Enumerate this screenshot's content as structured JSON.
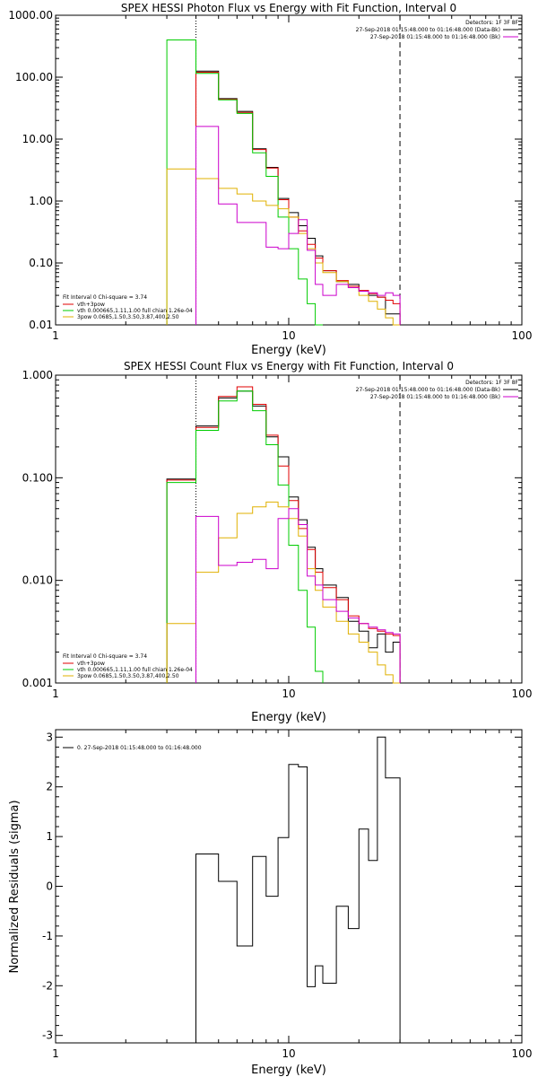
{
  "chart_data": [
    {
      "id": "photon",
      "type": "line",
      "title": "SPEX HESSI Photon Flux vs Energy with Fit Function, Interval 0",
      "xlabel": "Energy (keV)",
      "ylabel": "",
      "xscale": "log",
      "yscale": "log",
      "xlim": [
        1,
        100
      ],
      "ylim": [
        0.01,
        1000
      ],
      "x_ticks": [
        "1",
        "10",
        "100"
      ],
      "y_ticks": [
        "0.01",
        "0.10",
        "1.00",
        "10.00",
        "100.00",
        "1000.00"
      ],
      "vlines": [
        {
          "x": 4.0,
          "style": "dotted"
        },
        {
          "x": 30.0,
          "style": "dashed"
        }
      ],
      "legend_top": {
        "position": "top-right",
        "header": "Detectors: 1F 3F 8F",
        "entries": [
          {
            "text": "27-Sep-2018 01:15:48.000 to 01:16:48.000 (Data-Bk)",
            "color": "#000000"
          },
          {
            "text": "27-Sep-2018 01:15:48.000 to 01:16:48.000 (Bk)",
            "color": "#cc00cc"
          }
        ]
      },
      "legend_fit": {
        "position": "bottom-left",
        "header": "Fit Interval 0   Chi-square = 3.74",
        "entries": [
          {
            "text": "vth+3pow",
            "color": "#e00000"
          },
          {
            "text": "vth 0.000665,1.11,1.00   full chian 1.26e-04",
            "color": "#00cc00"
          },
          {
            "text": "3pow 0.0685,1.50,3.50,3.87,400,2.50",
            "color": "#e0b000"
          }
        ]
      },
      "series": [
        {
          "color": "#000000",
          "edges": [
            4,
            5,
            6,
            7,
            8,
            9,
            10,
            11,
            12,
            13,
            14,
            16,
            18,
            20,
            22,
            24,
            26,
            28,
            30
          ],
          "values": [
            125,
            45,
            28,
            7.0,
            3.5,
            1.1,
            0.65,
            0.4,
            0.25,
            0.13,
            0.075,
            0.05,
            0.045,
            0.035,
            0.03,
            0.028,
            0.015,
            0.015
          ]
        },
        {
          "color": "#e00000",
          "edges": [
            4,
            5,
            6,
            7,
            8,
            9,
            10,
            11,
            12,
            13,
            14,
            16,
            18,
            20,
            22,
            24,
            26,
            28,
            30
          ],
          "values": [
            120,
            44,
            27,
            6.8,
            3.4,
            1.05,
            0.55,
            0.33,
            0.2,
            0.12,
            0.075,
            0.052,
            0.042,
            0.036,
            0.032,
            0.028,
            0.025,
            0.022
          ]
        },
        {
          "color": "#00cc00",
          "edges": [
            3,
            4,
            5,
            6,
            7,
            8,
            9,
            10,
            11,
            12,
            13,
            14
          ],
          "values": [
            400,
            115,
            43,
            26,
            6.0,
            2.5,
            0.55,
            0.17,
            0.055,
            0.022,
            0.01
          ]
        },
        {
          "color": "#e0b000",
          "edges": [
            3,
            4,
            5,
            6,
            7,
            8,
            9,
            10,
            11,
            12,
            13,
            14,
            16,
            18,
            20,
            22,
            24,
            26,
            28,
            30
          ],
          "values": [
            3.3,
            2.3,
            1.6,
            1.3,
            1.0,
            0.85,
            0.75,
            0.55,
            0.3,
            0.17,
            0.1,
            0.07,
            0.05,
            0.04,
            0.03,
            0.024,
            0.018,
            0.013,
            0.01
          ]
        },
        {
          "color": "#cc00cc",
          "edges": [
            4,
            5,
            6,
            7,
            8,
            9,
            10,
            11,
            12,
            13,
            14,
            16,
            18,
            20,
            22,
            24,
            26,
            28,
            30
          ],
          "values": [
            16,
            0.9,
            0.45,
            0.45,
            0.18,
            0.17,
            0.3,
            0.5,
            0.16,
            0.045,
            0.03,
            0.045,
            0.04,
            0.035,
            0.033,
            0.03,
            0.033,
            0.03
          ]
        }
      ]
    },
    {
      "id": "count",
      "type": "line",
      "title": "SPEX HESSI Count Flux vs Energy with Fit Function, Interval 0",
      "xlabel": "Energy (keV)",
      "ylabel": "",
      "xscale": "log",
      "yscale": "log",
      "xlim": [
        1,
        100
      ],
      "ylim": [
        0.001,
        1.0
      ],
      "x_ticks": [
        "1",
        "10",
        "100"
      ],
      "y_ticks": [
        "0.001",
        "0.010",
        "0.100",
        "1.000"
      ],
      "vlines": [
        {
          "x": 4.0,
          "style": "dotted"
        },
        {
          "x": 30.0,
          "style": "dashed"
        }
      ],
      "legend_top": {
        "position": "top-right",
        "header": "Detectors: 1F 3F 8F",
        "entries": [
          {
            "text": "27-Sep-2018 01:15:48.000 to 01:16:48.000 (Data-Bk)",
            "color": "#000000"
          },
          {
            "text": "27-Sep-2018 01:15:48.000 to 01:16:48.000 (Bk)",
            "color": "#cc00cc"
          }
        ]
      },
      "legend_fit": {
        "position": "bottom-left",
        "header": "Fit Interval 0   Chi-square = 3.74",
        "entries": [
          {
            "text": "vth+3pow",
            "color": "#e00000"
          },
          {
            "text": "vth 0.000665,1.11,1.00   full chian 1.26e-04",
            "color": "#00cc00"
          },
          {
            "text": "3pow 0.0685,1.50,3.50,3.87,400,2.50",
            "color": "#e0b000"
          }
        ]
      },
      "series": [
        {
          "color": "#000000",
          "edges": [
            3,
            4,
            5,
            6,
            7,
            8,
            9,
            10,
            11,
            12,
            13,
            14,
            16,
            18,
            20,
            22,
            24,
            26,
            28,
            30
          ],
          "values": [
            0.097,
            0.32,
            0.6,
            0.7,
            0.5,
            0.25,
            0.16,
            0.065,
            0.039,
            0.021,
            0.013,
            0.009,
            0.0068,
            0.004,
            0.0032,
            0.0022,
            0.003,
            0.002,
            0.0025
          ]
        },
        {
          "color": "#e00000",
          "edges": [
            3,
            4,
            5,
            6,
            7,
            8,
            9,
            10,
            11,
            12,
            13,
            14,
            16,
            18,
            20,
            22,
            24,
            26,
            28,
            30
          ],
          "values": [
            0.095,
            0.31,
            0.62,
            0.77,
            0.52,
            0.26,
            0.13,
            0.06,
            0.032,
            0.02,
            0.012,
            0.0085,
            0.0065,
            0.0045,
            0.0038,
            0.0034,
            0.0032,
            0.003,
            0.0029
          ]
        },
        {
          "color": "#00cc00",
          "edges": [
            3,
            4,
            5,
            6,
            7,
            8,
            9,
            10,
            11,
            12,
            13,
            14
          ],
          "values": [
            0.09,
            0.29,
            0.56,
            0.7,
            0.45,
            0.21,
            0.085,
            0.022,
            0.008,
            0.0035,
            0.0013
          ]
        },
        {
          "color": "#e0b000",
          "edges": [
            3,
            4,
            5,
            6,
            7,
            8,
            9,
            10,
            11,
            12,
            13,
            14,
            16,
            18,
            20,
            22,
            24,
            26,
            28,
            30
          ],
          "values": [
            0.0038,
            0.012,
            0.026,
            0.045,
            0.052,
            0.058,
            0.052,
            0.04,
            0.027,
            0.013,
            0.008,
            0.0055,
            0.004,
            0.003,
            0.0025,
            0.002,
            0.0015,
            0.0012,
            0.001
          ]
        },
        {
          "color": "#cc00cc",
          "edges": [
            4,
            5,
            6,
            7,
            8,
            9,
            10,
            11,
            12,
            13,
            14,
            16,
            18,
            20,
            22,
            24,
            26,
            28,
            30
          ],
          "values": [
            0.042,
            0.014,
            0.015,
            0.016,
            0.013,
            0.04,
            0.05,
            0.035,
            0.011,
            0.009,
            0.0065,
            0.005,
            0.0043,
            0.0038,
            0.0035,
            0.0033,
            0.0031,
            0.003
          ]
        }
      ]
    },
    {
      "id": "resid",
      "type": "line",
      "title": "",
      "xlabel": "Energy (keV)",
      "ylabel": "Normalized Residuals (sigma)",
      "xscale": "log",
      "yscale": "linear",
      "xlim": [
        1,
        100
      ],
      "ylim": [
        -3.15,
        3.15
      ],
      "x_ticks": [
        "1",
        "10",
        "100"
      ],
      "y_ticks": [
        "-3",
        "-2",
        "-1",
        "0",
        "1",
        "2",
        "3"
      ],
      "legend": {
        "position": "top-left",
        "entries": [
          {
            "text": "0. 27-Sep-2018 01:15:48.000 to 01:16:48.000",
            "color": "#000000"
          }
        ]
      },
      "series": [
        {
          "color": "#000000",
          "edges": [
            4,
            5,
            6,
            7,
            8,
            9,
            10,
            11,
            12,
            13,
            14,
            16,
            18,
            20,
            22,
            24,
            26,
            28,
            30
          ],
          "values": [
            0.65,
            0.1,
            -1.2,
            0.6,
            -0.2,
            0.98,
            2.45,
            2.4,
            -2.02,
            -1.6,
            -1.95,
            -0.4,
            -0.85,
            1.15,
            0.52,
            3.0,
            2.18,
            2.18
          ],
          "drop_to_bottom": true
        }
      ]
    }
  ]
}
